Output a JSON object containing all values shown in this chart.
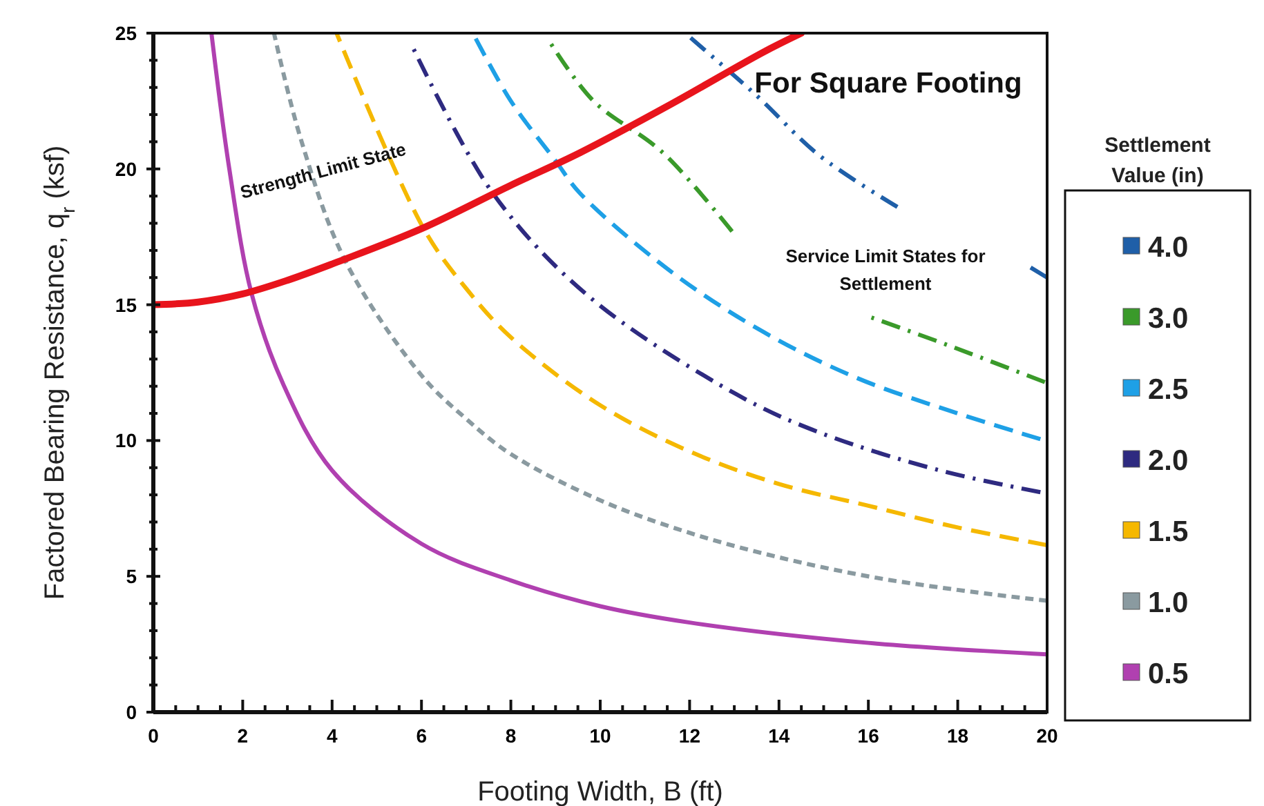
{
  "chart_data": {
    "type": "line",
    "xlabel": "Footing Width, B (ft)",
    "ylabel": "Factored Bearing Resistance, q$_{r}$ (ksf)",
    "legend_title": "Settlement Value (in)",
    "legend": "right",
    "grid": false,
    "xlim": [
      0,
      20
    ],
    "ylim": [
      0,
      25
    ],
    "xticks": [
      0,
      {
        "value": 0.5,
        "label": null
      },
      {
        "value": 1,
        "label": null
      },
      {
        "value": 1.5,
        "label": null
      },
      2,
      {
        "value": 2.5,
        "label": null
      },
      {
        "value": 3,
        "label": null
      },
      {
        "value": 3.5,
        "label": null
      },
      4,
      {
        "value": 4.5,
        "label": null
      },
      {
        "value": 5,
        "label": null
      },
      {
        "value": 5.5,
        "label": null
      },
      6,
      {
        "value": 6.5,
        "label": null
      },
      {
        "value": 7,
        "label": null
      },
      {
        "value": 7.5,
        "label": null
      },
      8,
      {
        "value": 8.5,
        "label": null
      },
      {
        "value": 9,
        "label": null
      },
      {
        "value": 9.5,
        "label": null
      },
      10,
      {
        "value": 10.5,
        "label": null
      },
      {
        "value": 11,
        "label": null
      },
      {
        "value": 11.5,
        "label": null
      },
      12,
      {
        "value": 12.5,
        "label": null
      },
      {
        "value": 13,
        "label": null
      },
      {
        "value": 13.5,
        "label": null
      },
      14,
      {
        "value": 14.5,
        "label": null
      },
      {
        "value": 15,
        "label": null
      },
      {
        "value": 15.5,
        "label": null
      },
      16,
      {
        "value": 16.5,
        "label": null
      },
      {
        "value": 17,
        "label": null
      },
      {
        "value": 17.5,
        "label": null
      },
      18,
      {
        "value": 18.5,
        "label": null
      },
      {
        "value": 19,
        "label": null
      },
      {
        "value": 19.5,
        "label": null
      },
      20
    ],
    "yticks": [
      0,
      {
        "value": 1,
        "label": null
      },
      {
        "value": 2,
        "label": null
      },
      {
        "value": 3,
        "label": null
      },
      {
        "value": 4,
        "label": null
      },
      5,
      {
        "value": 6,
        "label": null
      },
      {
        "value": 7,
        "label": null
      },
      {
        "value": 8,
        "label": null
      },
      {
        "value": 9,
        "label": null
      },
      10,
      {
        "value": 11,
        "label": null
      },
      {
        "value": 12,
        "label": null
      },
      {
        "value": 13,
        "label": null
      },
      {
        "value": 14,
        "label": null
      },
      15,
      {
        "value": 16,
        "label": null
      },
      {
        "value": 17,
        "label": null
      },
      {
        "value": 18,
        "label": null
      },
      {
        "value": 19,
        "label": null
      },
      20,
      {
        "value": 21,
        "label": null
      },
      {
        "value": 22,
        "label": null
      },
      {
        "value": 23,
        "label": null
      },
      {
        "value": 24,
        "label": null
      },
      25
    ],
    "annotations": [
      "For Square Footing",
      "Strength Limit State",
      "Service Limit States for Settlement"
    ],
    "series": [
      {
        "name": "4.0",
        "color": "#1f5fa8",
        "line_style": "dashdotdot",
        "x": [
          11.9,
          13.5,
          14.9,
          16.65,
          18.3,
          19.5,
          20
        ],
        "values": [
          25,
          22.7,
          20.5,
          18.6,
          null,
          16.5,
          16
        ]
      },
      {
        "name": "3.0",
        "color": "#3a9a2a",
        "line_style": "dashdot",
        "x": [
          8.9,
          9.85,
          11.4,
          12.95,
          14.5,
          15.95,
          17.8,
          19.95
        ],
        "values": [
          24.6,
          22.5,
          20.6,
          17.7,
          null,
          14.6,
          13.5,
          12.15
        ]
      },
      {
        "name": "2.5",
        "color": "#1ea0e6",
        "line_style": "dashed",
        "x": [
          7.15,
          8,
          9,
          9.55,
          11.6,
          13.65,
          15.75,
          18,
          19.85
        ],
        "values": [
          25,
          22.5,
          20.3,
          19.1,
          16.2,
          14,
          12.3,
          11,
          10.05
        ]
      },
      {
        "name": "2.0",
        "color": "#2e2a80",
        "line_style": "dashdot",
        "x": [
          5.8,
          7.6,
          9.75,
          13.05,
          14.9,
          17.6,
          19.85
        ],
        "values": [
          24.5,
          19.1,
          15.3,
          11.7,
          10.3,
          8.9,
          8.1
        ]
      },
      {
        "name": "1.5",
        "color": "#f5b800",
        "line_style": "dashed",
        "x": [
          4.1,
          6.05,
          7,
          8,
          10,
          12,
          14,
          16,
          18,
          20
        ],
        "values": [
          25,
          17.8,
          15.6,
          13.8,
          11.3,
          9.6,
          8.4,
          7.6,
          6.8,
          6.15
        ]
      },
      {
        "name": "1.0",
        "color": "#8a9aa0",
        "line_style": "dotted",
        "x": [
          2.7,
          3.3,
          4.3,
          6,
          7,
          8,
          10,
          12,
          14,
          16,
          18,
          20
        ],
        "values": [
          25,
          21.1,
          16.6,
          12.4,
          10.8,
          9.5,
          7.8,
          6.6,
          5.7,
          5,
          4.5,
          4.1
        ]
      },
      {
        "name": "0.5",
        "color": "#b040b0",
        "line_style": "solid",
        "x": [
          1.3,
          1.7,
          2.2,
          2.9,
          4,
          6,
          8,
          10,
          12,
          16,
          20
        ],
        "values": [
          25,
          20,
          15.4,
          12.1,
          8.9,
          6.2,
          4.85,
          3.9,
          3.3,
          2.55,
          2.13
        ]
      },
      {
        "color": "#e8141c",
        "line_style": "solid",
        "x": [
          0,
          1,
          2,
          3,
          4,
          6,
          8,
          9.55,
          11.6,
          13.65,
          14.5
        ],
        "values": [
          15,
          15.1,
          15.4,
          15.9,
          16.5,
          17.8,
          19.4,
          20.6,
          22.4,
          24.3,
          25
        ]
      }
    ]
  }
}
